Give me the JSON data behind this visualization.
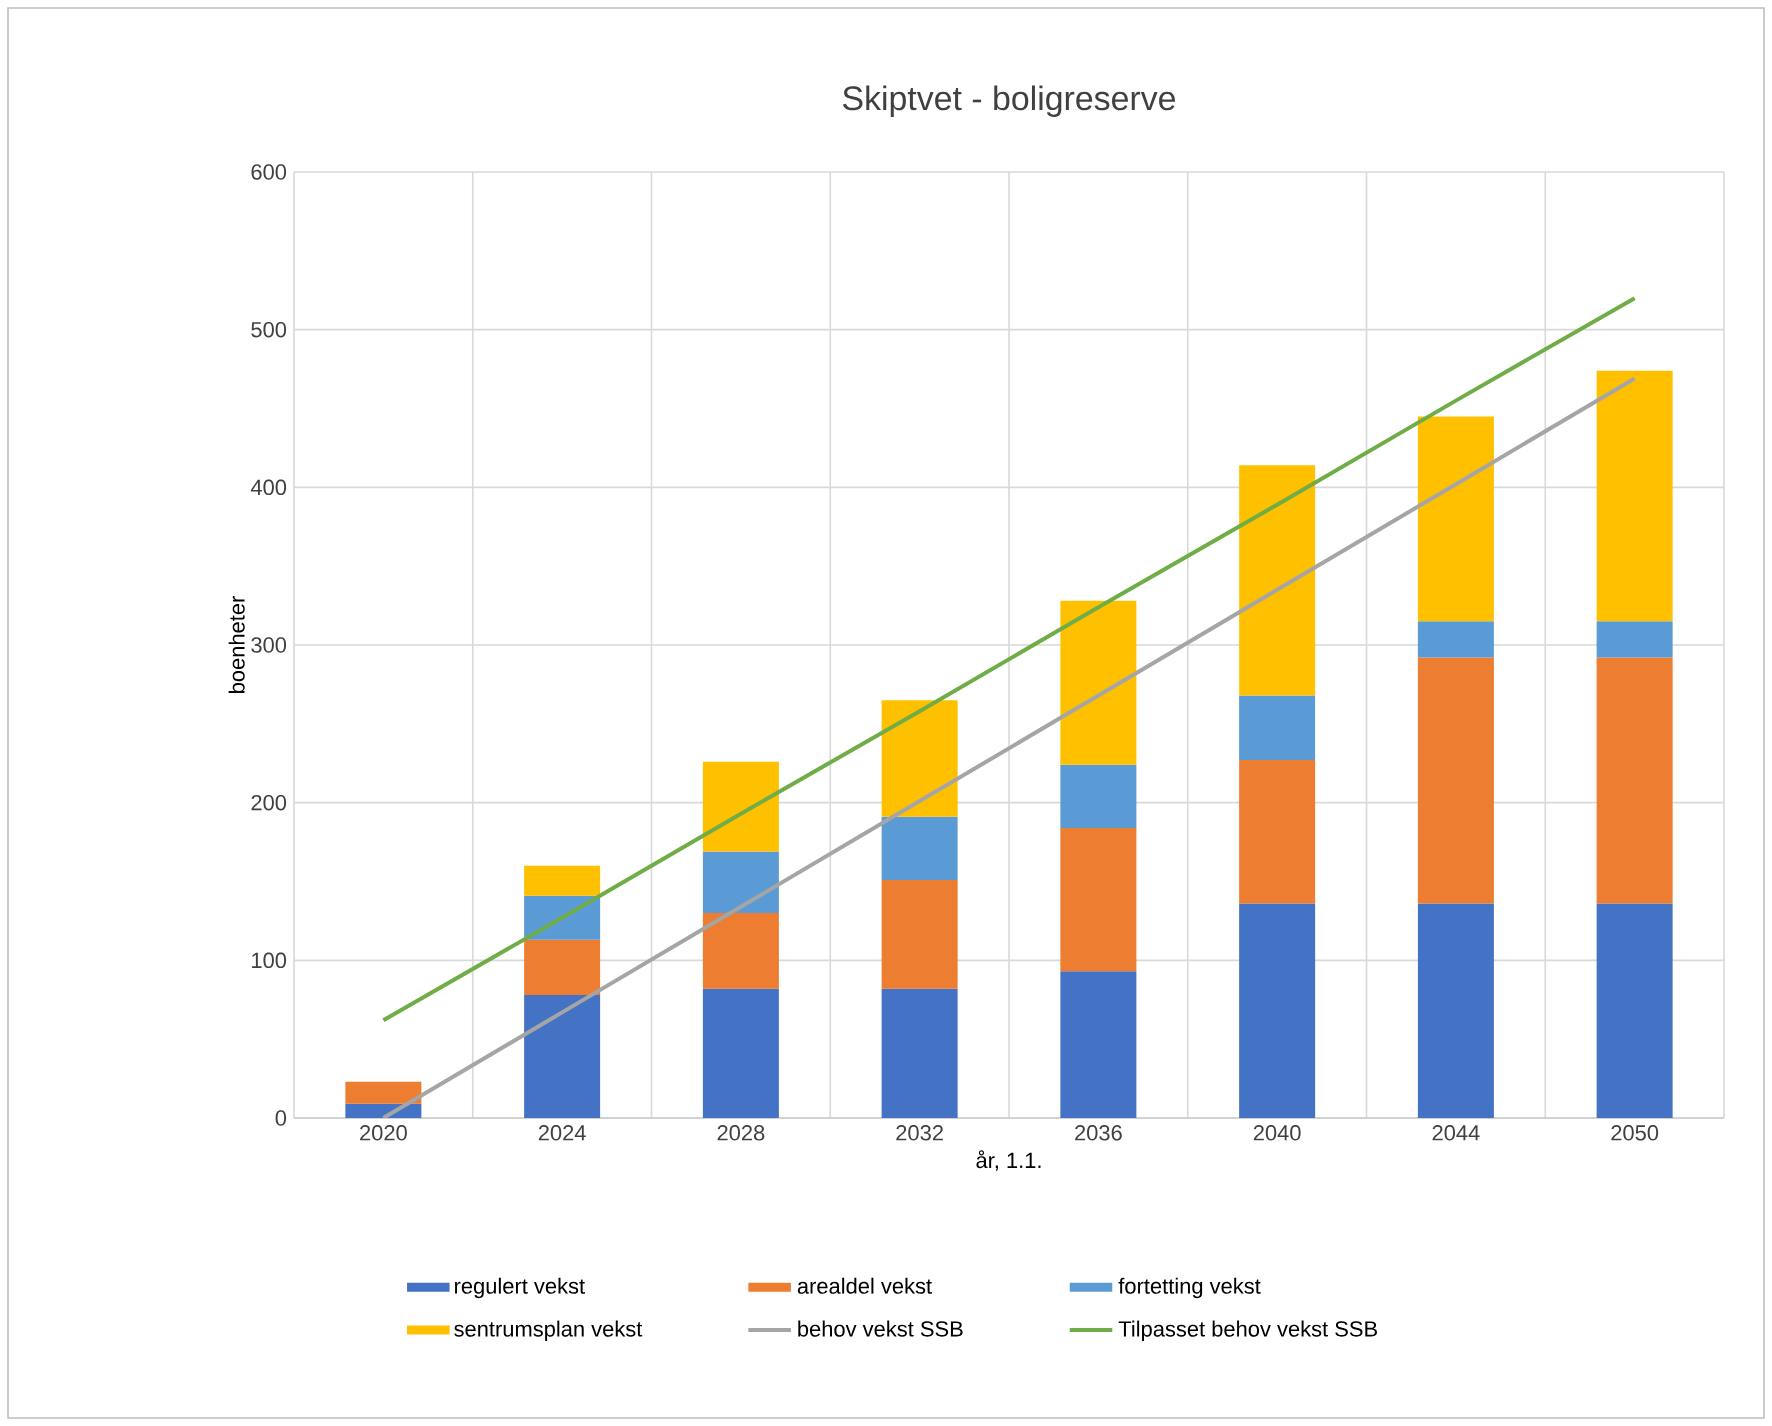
{
  "chart_data": {
    "type": "bar",
    "stacked": true,
    "title": "Skiptvet - boligreserve",
    "xlabel": "år, 1.1.",
    "ylabel": "boenheter",
    "categories": [
      "2020",
      "2024",
      "2028",
      "2032",
      "2036",
      "2040",
      "2044",
      "2050"
    ],
    "series": [
      {
        "name": "regulert vekst",
        "color": "#4472c4",
        "values": [
          9,
          78,
          82,
          82,
          93,
          136,
          136,
          136
        ]
      },
      {
        "name": "arealdel vekst",
        "color": "#ed7d31",
        "values": [
          14,
          35,
          48,
          69,
          91,
          91,
          156,
          156
        ]
      },
      {
        "name": "fortetting vekst",
        "color": "#5b9bd5",
        "values": [
          0,
          28,
          39,
          40,
          40,
          41,
          23,
          23
        ]
      },
      {
        "name": "sentrumsplan vekst",
        "color": "#ffc000",
        "values": [
          0,
          19,
          57,
          74,
          104,
          146,
          130,
          159
        ]
      },
      {
        "name": "behov vekst SSB",
        "type": "line",
        "color": "#a5a5a5",
        "values": [
          0,
          67,
          134,
          201,
          268,
          335,
          402,
          469
        ]
      },
      {
        "name": "Tilpasset behov vekst SSB",
        "type": "line",
        "color": "#70ad47",
        "values": [
          62,
          127,
          193,
          258,
          324,
          389,
          455,
          520
        ]
      }
    ],
    "ylim": [
      0,
      600
    ],
    "yticks": [
      0,
      100,
      200,
      300,
      400,
      500,
      600
    ],
    "grid": true,
    "legend": "bottom"
  }
}
